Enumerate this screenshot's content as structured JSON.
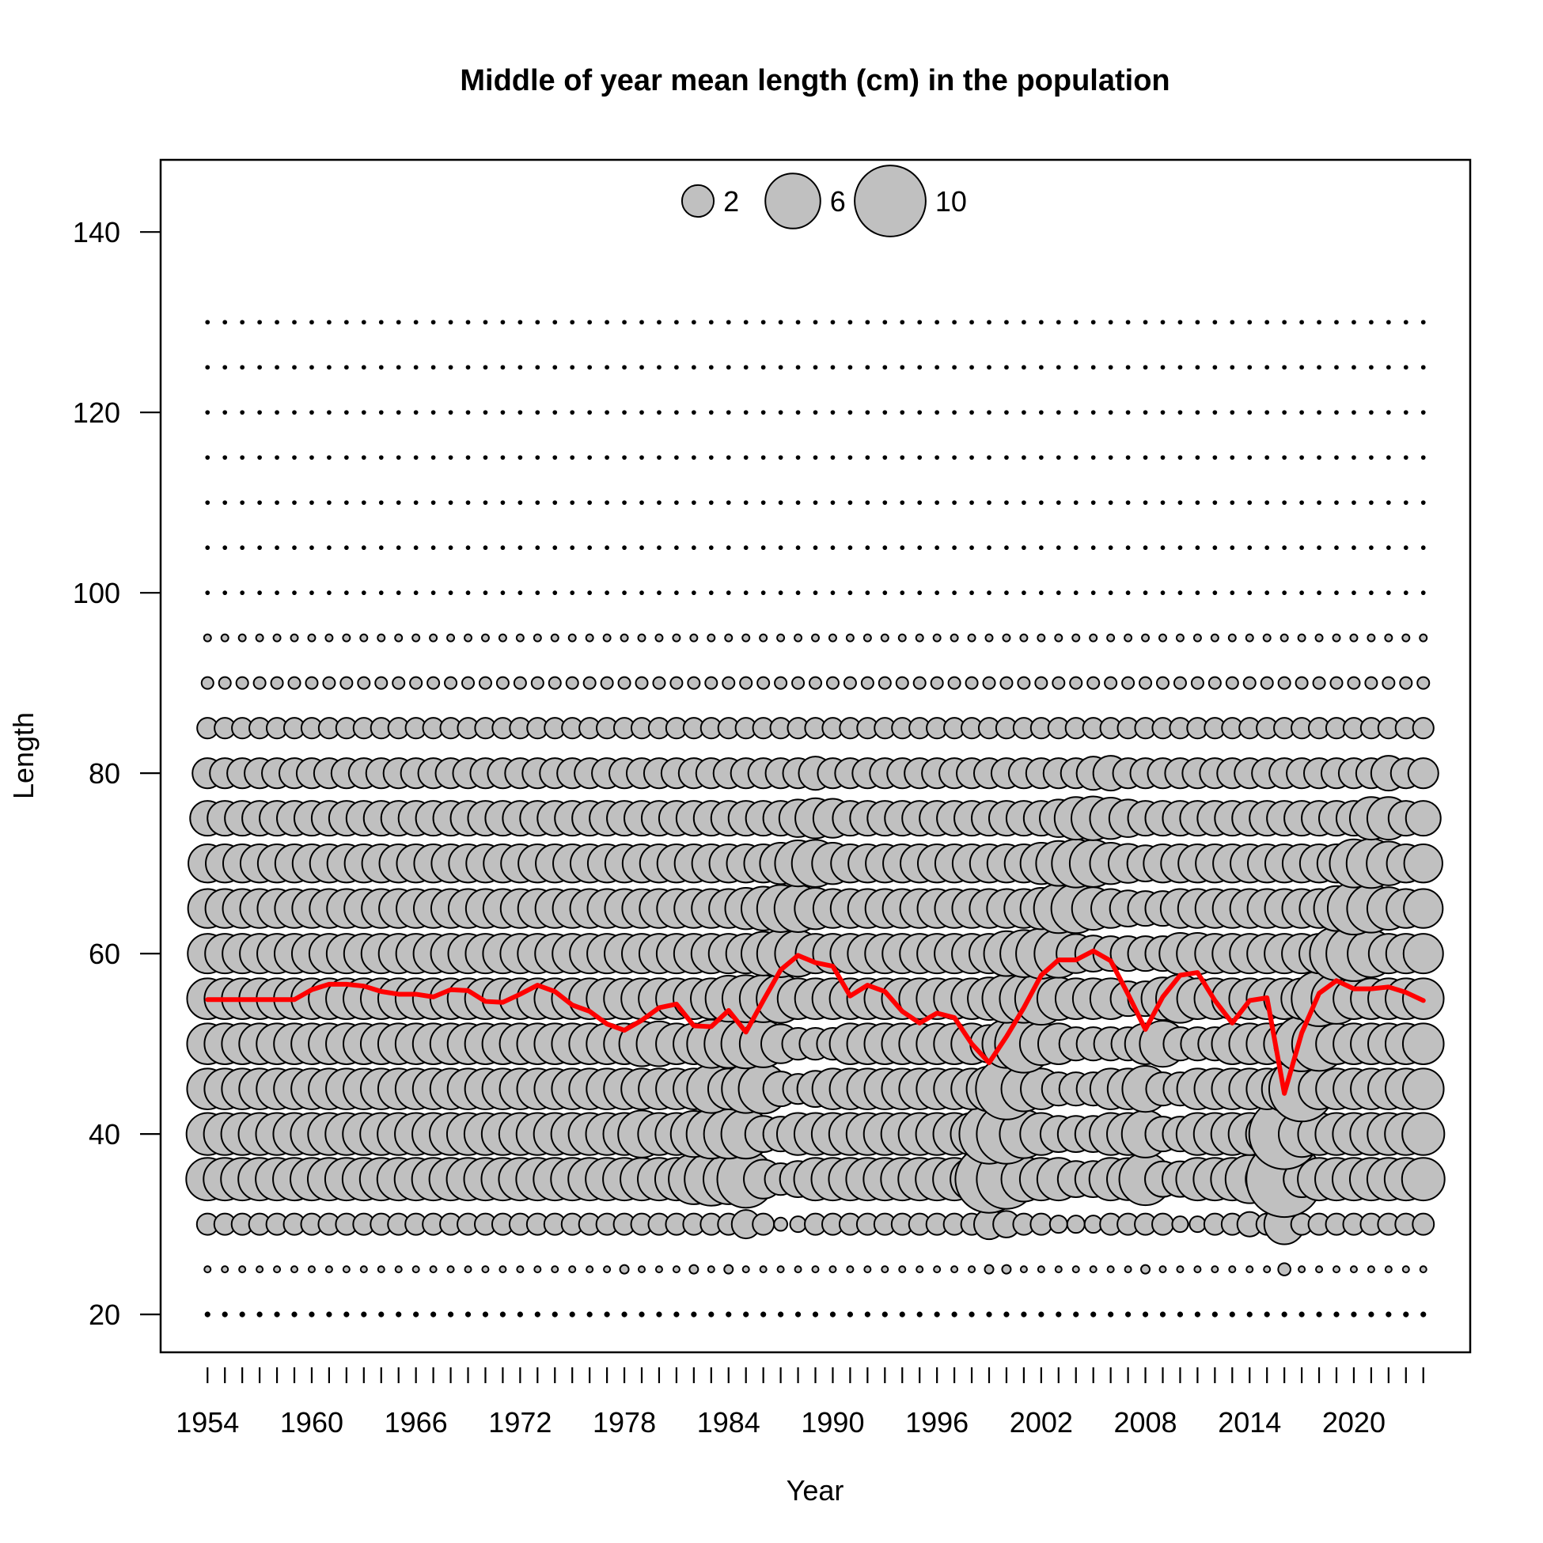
{
  "chart_data": {
    "type": "scatter",
    "subtype": "bubble-with-mean-line",
    "title": "Middle of year mean length (cm) in the population",
    "xlabel": "Year",
    "ylabel": "Length",
    "xlim": [
      1951.3,
      2026.7
    ],
    "ylim": [
      15.8,
      148
    ],
    "x_ticks": [
      1954,
      1955,
      1956,
      1957,
      1958,
      1959,
      1960,
      1961,
      1962,
      1963,
      1964,
      1965,
      1966,
      1967,
      1968,
      1969,
      1970,
      1971,
      1972,
      1973,
      1974,
      1975,
      1976,
      1977,
      1978,
      1979,
      1980,
      1981,
      1982,
      1983,
      1984,
      1985,
      1986,
      1987,
      1988,
      1989,
      1990,
      1991,
      1992,
      1993,
      1994,
      1995,
      1996,
      1997,
      1998,
      1999,
      2000,
      2001,
      2002,
      2003,
      2004,
      2005,
      2006,
      2007,
      2008,
      2009,
      2010,
      2011,
      2012,
      2013,
      2014,
      2015,
      2016,
      2017,
      2018,
      2019,
      2020,
      2021,
      2022,
      2023,
      2024
    ],
    "x_tick_labels": [
      "1954",
      "1960",
      "1966",
      "1972",
      "1978",
      "1984",
      "1990",
      "1996",
      "2002",
      "2008",
      "2014",
      "2020"
    ],
    "y_tick_labels": [
      "20",
      "40",
      "60",
      "80",
      "100",
      "120",
      "140"
    ],
    "y_ticks": [
      20,
      40,
      60,
      80,
      100,
      120,
      140
    ],
    "length_bins": [
      20,
      25,
      30,
      35,
      40,
      45,
      50,
      55,
      60,
      65,
      70,
      75,
      80,
      85,
      90,
      95,
      100,
      105,
      110,
      115,
      120,
      125,
      130
    ],
    "years": [
      1954,
      1955,
      1956,
      1957,
      1958,
      1959,
      1960,
      1961,
      1962,
      1963,
      1964,
      1965,
      1966,
      1967,
      1968,
      1969,
      1970,
      1971,
      1972,
      1973,
      1974,
      1975,
      1976,
      1977,
      1978,
      1979,
      1980,
      1981,
      1982,
      1983,
      1984,
      1985,
      1986,
      1987,
      1988,
      1989,
      1990,
      1991,
      1992,
      1993,
      1994,
      1995,
      1996,
      1997,
      1998,
      1999,
      2000,
      2001,
      2002,
      2003,
      2004,
      2005,
      2006,
      2007,
      2008,
      2009,
      2010,
      2011,
      2012,
      2013,
      2014,
      2015,
      2016,
      2017,
      2018,
      2019,
      2020,
      2021,
      2022,
      2023,
      2024
    ],
    "bubble_size_by_bin": {
      "20": {
        "base": 0.05
      },
      "25": {
        "base": 0.08,
        "overrides": {
          "1978": 0.15,
          "1982": 0.15,
          "1984": 0.15,
          "1999": 0.15,
          "2000": 0.15,
          "2008": 0.15,
          "2016": 0.3
        }
      },
      "30": {
        "base": 0.9,
        "overrides": {
          "1987": 0.35,
          "1988": 0.5,
          "1985": 1.6,
          "1999": 1.8,
          "2000": 1.4,
          "2003": 0.6,
          "2004": 0.6,
          "2005": 0.6,
          "2010": 0.5,
          "2011": 0.5,
          "2016": 3.2,
          "2014": 1.2
        }
      },
      "35": {
        "base": 3.6,
        "overrides": {
          "1982": 5.0,
          "1983": 5.6,
          "1984": 5.0,
          "1985": 6.5,
          "1986": 3.0,
          "1987": 2.0,
          "1988": 2.6,
          "1999": 9.0,
          "2000": 7.0,
          "2001": 4.0,
          "2004": 2.6,
          "2005": 2.6,
          "2007": 3.5,
          "2008": 5.4,
          "2009": 2.5,
          "2010": 2.5,
          "2014": 4.6,
          "2016": 11.4,
          "2017": 2.6
        }
      },
      "40": {
        "base": 3.5,
        "overrides": {
          "1979": 4.4,
          "1982": 4.2,
          "1983": 4.8,
          "1984": 4.8,
          "1985": 4.8,
          "1986": 2.6,
          "1987": 2.4,
          "1999": 7.0,
          "2000": 7.0,
          "2001": 4.6,
          "2003": 2.6,
          "2004": 2.6,
          "2005": 2.6,
          "2008": 4.4,
          "2009": 2.4,
          "2010": 2.4,
          "2016": 9.8,
          "2017": 4.2
        }
      },
      "45": {
        "base": 3.3,
        "overrides": {
          "1983": 4.6,
          "1985": 4.6,
          "1986": 4.8,
          "1987": 2.4,
          "1988": 1.8,
          "1989": 2.6,
          "1999": 4.0,
          "2000": 7.4,
          "2001": 4.0,
          "2003": 2.2,
          "2004": 2.2,
          "2005": 2.2,
          "2008": 4.2,
          "2009": 2.2,
          "2010": 2.2,
          "2016": 4.0,
          "2017": 8.4
        }
      },
      "50": {
        "base": 3.3,
        "overrides": {
          "1979": 4.0,
          "1980": 4.0,
          "1983": 4.6,
          "1984": 4.6,
          "1985": 4.8,
          "1986": 4.4,
          "1987": 3.0,
          "1988": 2.0,
          "1989": 2.0,
          "1990": 2.0,
          "1999": 2.8,
          "2000": 4.6,
          "2001": 6.6,
          "2002": 3.6,
          "2004": 2.2,
          "2005": 2.2,
          "2006": 2.2,
          "2007": 2.2,
          "2009": 4.2,
          "2010": 2.2,
          "2011": 2.2,
          "2012": 2.2,
          "2017": 6.0,
          "2018": 5.8
        }
      },
      "55": {
        "base": 3.3,
        "overrides": {
          "1984": 4.2,
          "1985": 4.4,
          "1986": 4.4,
          "1987": 4.6,
          "1999": 3.6,
          "2000": 4.6,
          "2001": 4.6,
          "2002": 5.4,
          "2003": 3.6,
          "2007": 2.4,
          "2008": 2.4,
          "2009": 3.6,
          "2010": 4.6,
          "2018": 6.0,
          "2019": 5.0
        }
      },
      "60": {
        "base": 3.1,
        "overrides": {
          "1986": 3.8,
          "1987": 4.4,
          "1988": 4.2,
          "2000": 4.0,
          "2001": 4.4,
          "2002": 5.0,
          "2003": 4.6,
          "2004": 3.0,
          "2005": 2.6,
          "2006": 2.4,
          "2007": 2.4,
          "2008": 2.4,
          "2009": 2.4,
          "2010": 3.4,
          "2011": 3.4,
          "2019": 5.6,
          "2020": 6.0,
          "2021": 4.4
        }
      },
      "65": {
        "base": 3.0,
        "overrides": {
          "1985": 3.4,
          "1986": 3.8,
          "1987": 4.4,
          "1988": 4.4,
          "1989": 3.4,
          "2002": 3.4,
          "2003": 4.8,
          "2004": 4.8,
          "2005": 3.6,
          "2006": 3.0,
          "2007": 2.6,
          "2008": 2.4,
          "2009": 2.4,
          "2019": 4.0,
          "2020": 5.4,
          "2021": 4.6,
          "2022": 3.6
        }
      },
      "70": {
        "base": 2.9,
        "overrides": {
          "1987": 3.4,
          "1988": 4.2,
          "1989": 4.4,
          "1990": 3.4,
          "2002": 3.4,
          "2003": 4.0,
          "2004": 4.6,
          "2005": 4.4,
          "2006": 3.4,
          "2007": 3.0,
          "2008": 2.6,
          "2020": 4.6,
          "2021": 4.8,
          "2022": 3.8
        }
      },
      "75": {
        "base": 2.4,
        "overrides": {
          "1988": 2.8,
          "1989": 3.2,
          "1990": 3.0,
          "2003": 2.8,
          "2004": 3.6,
          "2005": 3.8,
          "2006": 3.4,
          "2007": 2.8,
          "2021": 3.6,
          "2022": 3.6
        }
      },
      "80": {
        "base": 1.8,
        "overrides": {
          "1989": 2.2,
          "2005": 2.2,
          "2006": 2.4,
          "2022": 2.4
        }
      },
      "85": {
        "base": 0.85
      },
      "90": {
        "base": 0.28
      },
      "95": {
        "base": 0.1
      },
      "100": {
        "base": 0.03
      },
      "105": {
        "base": 0.03
      },
      "110": {
        "base": 0.03
      },
      "115": {
        "base": 0.03
      },
      "120": {
        "base": 0.03
      },
      "125": {
        "base": 0.03
      },
      "130": {
        "base": 0.03
      }
    },
    "series": [
      {
        "values": [
          54.9,
          54.9,
          54.9,
          54.9,
          54.9,
          54.9,
          56.0,
          56.6,
          56.6,
          56.4,
          55.8,
          55.5,
          55.5,
          55.2,
          56.0,
          55.9,
          54.7,
          54.6,
          55.5,
          56.5,
          55.8,
          54.3,
          53.6,
          52.2,
          51.5,
          52.6,
          54.0,
          54.4,
          52.0,
          51.9,
          53.7,
          51.3,
          54.8,
          58.2,
          59.8,
          59.0,
          58.6,
          55.3,
          56.5,
          55.8,
          53.6,
          52.3,
          53.4,
          52.9,
          50.0,
          47.9,
          50.8,
          54.0,
          57.6,
          59.3,
          59.3,
          60.3,
          59.2,
          55.5,
          51.6,
          55.2,
          57.6,
          57.9,
          54.8,
          52.3,
          54.8,
          55.1,
          44.5,
          51.2,
          55.6,
          57.0,
          56.1,
          56.1,
          56.3,
          55.7,
          54.8
        ],
        "color": "#ff0000"
      }
    ],
    "legend": {
      "placement": "top-center",
      "entries": [
        {
          "label": "2",
          "size": 2
        },
        {
          "label": "6",
          "size": 6
        },
        {
          "label": "10",
          "size": 10
        }
      ]
    },
    "bubble_fill": "#c0c0c0",
    "bubble_stroke": "#000000",
    "grid": false
  }
}
